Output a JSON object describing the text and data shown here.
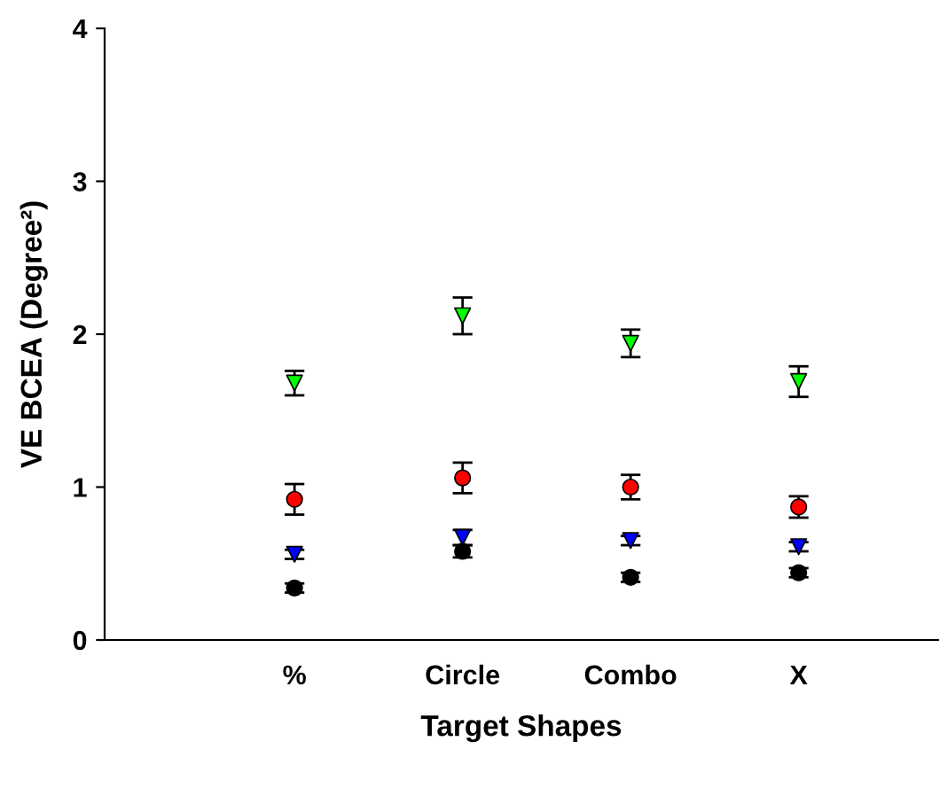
{
  "chart_data": {
    "type": "scatter",
    "xlabel": "Target Shapes",
    "ylabel": "VE BCEA (Degree²)",
    "categories": [
      "%",
      "Circle",
      "Combo",
      "X"
    ],
    "series": [
      {
        "color": "#00ff00",
        "marker": "triangle",
        "values": [
          1.68,
          2.12,
          1.94,
          1.69
        ],
        "errors": [
          0.08,
          0.12,
          0.09,
          0.1
        ]
      },
      {
        "color": "#ff0000",
        "marker": "circle",
        "values": [
          0.92,
          1.06,
          1.0,
          0.87
        ],
        "errors": [
          0.1,
          0.1,
          0.08,
          0.07
        ]
      },
      {
        "color": "#0000ff",
        "marker": "triangle",
        "values": [
          0.56,
          0.67,
          0.65,
          0.61
        ],
        "errors": [
          0.03,
          0.05,
          0.03,
          0.03
        ]
      },
      {
        "color": "#000000",
        "marker": "circle",
        "values": [
          0.34,
          0.58,
          0.41,
          0.44
        ],
        "errors": [
          0.03,
          0.04,
          0.03,
          0.03
        ]
      }
    ],
    "ylim": [
      0,
      4
    ],
    "yticks": [
      0,
      1,
      2,
      3,
      4
    ],
    "grid": false,
    "legend": false
  }
}
